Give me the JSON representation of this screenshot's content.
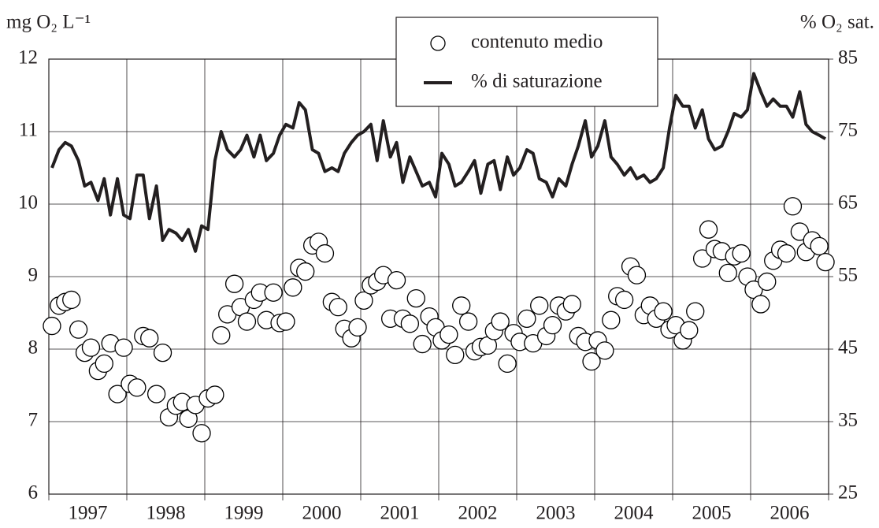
{
  "chart_data": {
    "type": "scatter-line",
    "y_label": "mg O₂ L⁻¹",
    "y2_label": "% O₂ sat.",
    "ylim": [
      6,
      12
    ],
    "yticks": [
      6,
      7,
      8,
      9,
      10,
      11,
      12
    ],
    "y2lim": [
      25,
      85
    ],
    "y2ticks": [
      25,
      35,
      45,
      55,
      65,
      75,
      85
    ],
    "xlim": [
      1997,
      2007
    ],
    "xticks": [
      1997,
      1998,
      1999,
      2000,
      2001,
      2002,
      2003,
      2004,
      2005,
      2006,
      2007
    ],
    "x_labels": [
      "1997",
      "1998",
      "1999",
      "2000",
      "2001",
      "2002",
      "2003",
      "2004",
      "2005",
      "2006"
    ],
    "grid": true,
    "legend": "top-center",
    "x": [
      1997.04,
      1997.13,
      1997.21,
      1997.29,
      1997.38,
      1997.46,
      1997.54,
      1997.63,
      1997.71,
      1997.79,
      1997.88,
      1997.96,
      1998.04,
      1998.13,
      1998.21,
      1998.29,
      1998.38,
      1998.46,
      1998.54,
      1998.63,
      1998.71,
      1998.79,
      1998.88,
      1998.96,
      1999.04,
      1999.13,
      1999.21,
      1999.29,
      1999.38,
      1999.46,
      1999.54,
      1999.63,
      1999.71,
      1999.79,
      1999.88,
      1999.96,
      2000.04,
      2000.13,
      2000.21,
      2000.29,
      2000.38,
      2000.46,
      2000.54,
      2000.63,
      2000.71,
      2000.79,
      2000.88,
      2000.96,
      2001.04,
      2001.13,
      2001.21,
      2001.29,
      2001.38,
      2001.46,
      2001.54,
      2001.63,
      2001.71,
      2001.79,
      2001.88,
      2001.96,
      2002.04,
      2002.13,
      2002.21,
      2002.29,
      2002.38,
      2002.46,
      2002.54,
      2002.63,
      2002.71,
      2002.79,
      2002.88,
      2002.96,
      2003.04,
      2003.13,
      2003.21,
      2003.29,
      2003.38,
      2003.46,
      2003.54,
      2003.63,
      2003.71,
      2003.79,
      2003.88,
      2003.96,
      2004.04,
      2004.13,
      2004.21,
      2004.29,
      2004.38,
      2004.46,
      2004.54,
      2004.63,
      2004.71,
      2004.79,
      2004.88,
      2004.96,
      2005.04,
      2005.13,
      2005.21,
      2005.29,
      2005.38,
      2005.46,
      2005.54,
      2005.63,
      2005.71,
      2005.79,
      2005.88,
      2005.96,
      2006.04,
      2006.13,
      2006.21,
      2006.29,
      2006.38,
      2006.46,
      2006.54,
      2006.63,
      2006.71,
      2006.79,
      2006.88,
      2006.96
    ],
    "series": [
      {
        "name": "contenuto medio",
        "style": "marker",
        "color": "#000000",
        "values": [
          8.32,
          8.6,
          8.65,
          8.68,
          8.27,
          7.95,
          8.02,
          7.7,
          7.8,
          8.08,
          7.38,
          8.02,
          7.52,
          7.47,
          8.18,
          8.15,
          7.38,
          7.95,
          7.06,
          7.22,
          7.27,
          7.04,
          7.23,
          6.84,
          7.32,
          7.37,
          8.19,
          8.48,
          8.9,
          8.58,
          8.38,
          8.68,
          8.78,
          8.4,
          8.78,
          8.36,
          8.38,
          8.85,
          9.12,
          9.07,
          9.43,
          9.48,
          9.32,
          8.65,
          8.58,
          8.28,
          8.15,
          8.3,
          8.67,
          8.88,
          8.93,
          9.02,
          8.42,
          8.95,
          8.42,
          8.35,
          8.7,
          8.07,
          8.45,
          8.3,
          8.12,
          8.2,
          7.92,
          8.6,
          8.38,
          7.97,
          8.03,
          8.05,
          8.25,
          8.38,
          7.8,
          8.22,
          8.1,
          8.42,
          8.08,
          8.6,
          8.18,
          8.33,
          8.6,
          8.52,
          8.62,
          8.18,
          8.1,
          7.83,
          8.12,
          7.98,
          8.4,
          8.73,
          8.68,
          9.14,
          9.02,
          8.47,
          8.6,
          8.42,
          8.52,
          8.27,
          8.33,
          8.12,
          8.26,
          8.52,
          9.25,
          9.65,
          9.38,
          9.35,
          9.05,
          9.28,
          9.32,
          9.0,
          8.82,
          8.62,
          8.93,
          9.22,
          9.37,
          9.32,
          9.97,
          9.62,
          9.34,
          9.5,
          9.42,
          9.2
        ]
      },
      {
        "name": "% di saturazione",
        "style": "line",
        "axis": "y2",
        "color": "#231f20",
        "values": [
          70,
          72.5,
          73.5,
          73,
          71,
          67.5,
          68,
          65.5,
          68.5,
          63.5,
          68.5,
          63.5,
          63,
          69,
          69,
          63,
          67.5,
          60,
          61.5,
          61,
          60,
          61.5,
          58.5,
          62,
          61.5,
          71,
          75,
          72.5,
          71.5,
          72.5,
          74.5,
          71.5,
          74.5,
          71,
          72,
          74.5,
          76,
          75.5,
          79,
          78,
          72.5,
          72,
          69.5,
          70,
          69.5,
          72,
          73.5,
          74.5,
          75,
          76,
          71,
          76.5,
          71.5,
          73.5,
          68,
          71.5,
          69.5,
          67.5,
          68,
          66,
          72,
          70.5,
          67.5,
          68,
          69.5,
          71,
          66.5,
          70.5,
          71,
          67,
          71.5,
          69,
          70,
          72.5,
          72,
          68.5,
          68,
          66,
          68.5,
          67.5,
          70.5,
          73,
          76.5,
          71.5,
          73,
          76.5,
          71.5,
          70.5,
          69,
          70,
          68.5,
          69,
          68,
          68.5,
          70,
          75.5,
          80,
          78.5,
          78.5,
          75.5,
          78,
          74,
          72.5,
          73,
          75,
          77.5,
          77,
          78,
          83,
          80.5,
          78.5,
          79.5,
          78.5,
          78.5,
          77,
          80.5,
          76,
          75,
          74.5,
          74
        ]
      }
    ]
  }
}
